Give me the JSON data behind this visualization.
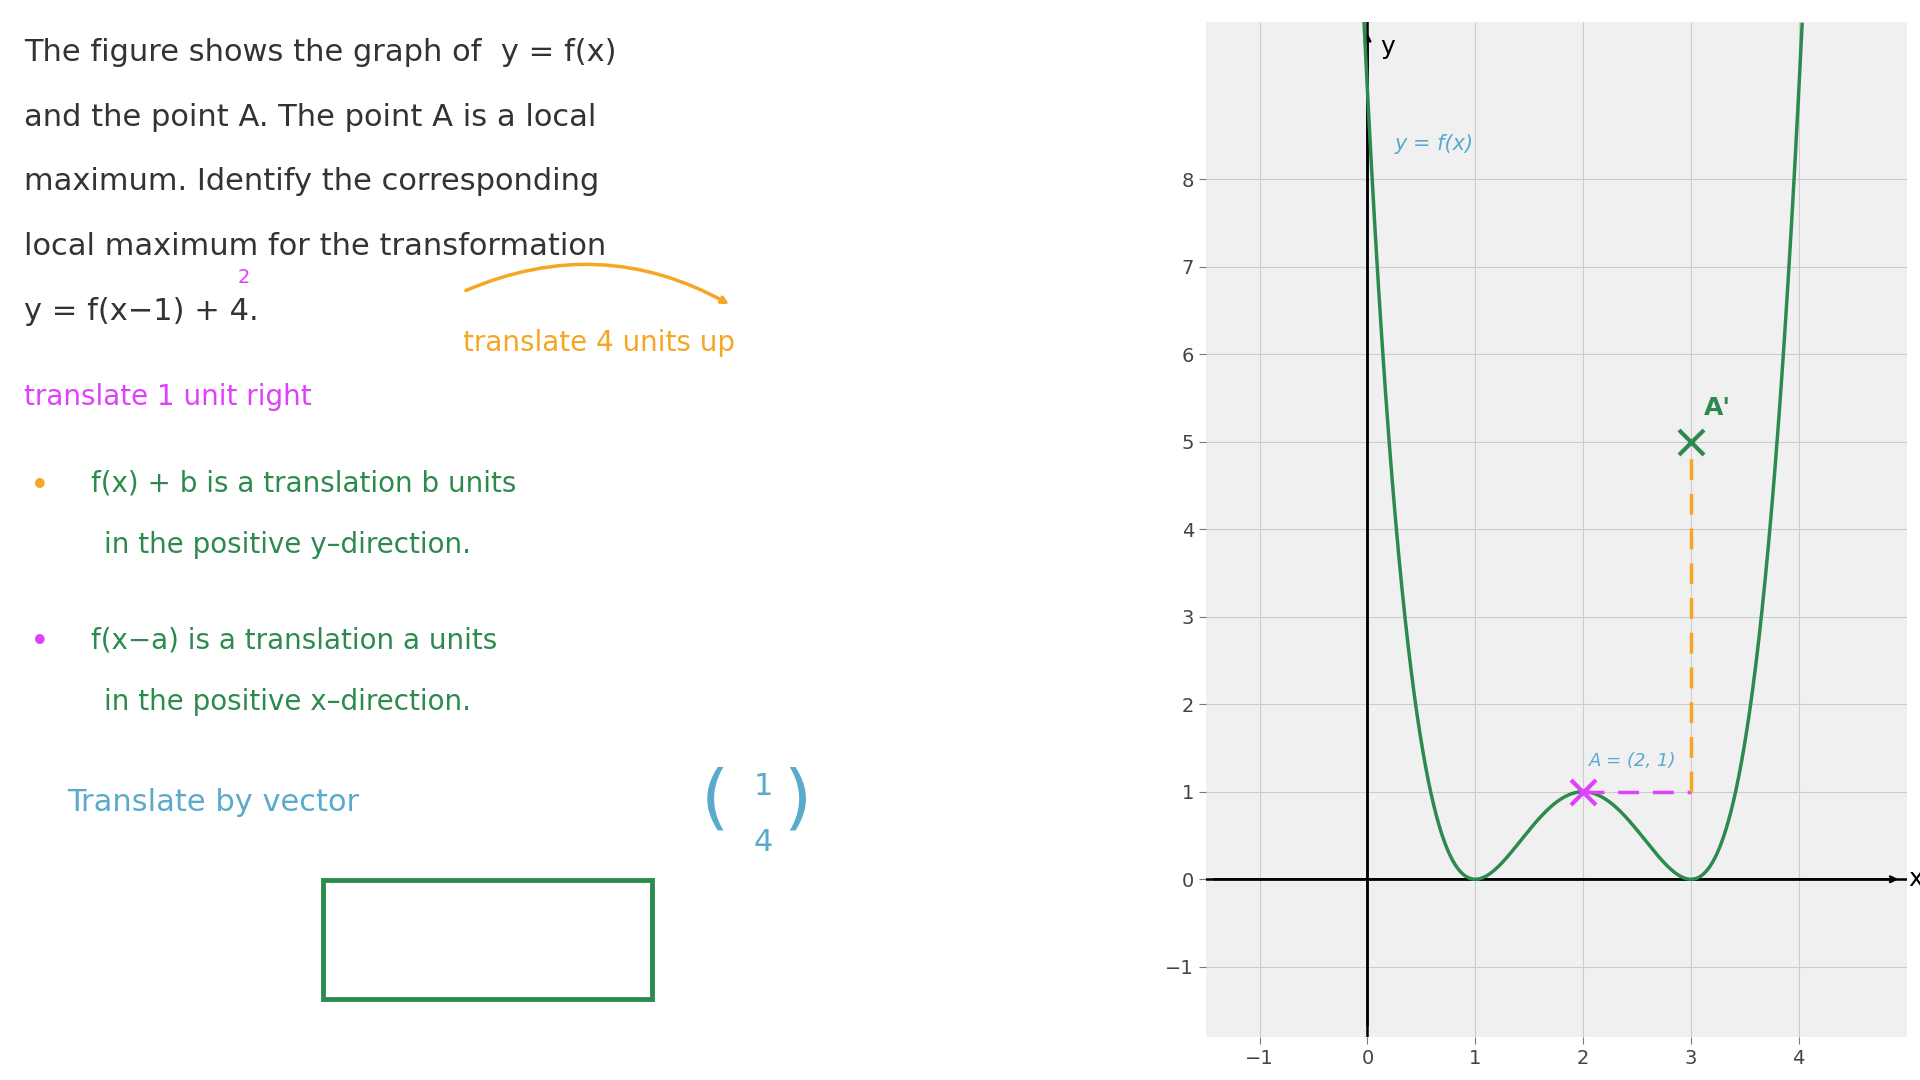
{
  "bg_color": "#ffffff",
  "graph_bg": "#f0f0f0",
  "curve_color": "#2d8a4e",
  "label_color": "#5aabcb",
  "point_A_color": "#e040fb",
  "point_Aprime_color": "#2d8a4e",
  "dashed_line_color": "#f5a623",
  "answer_box_color": "#2d8a4e",
  "vector_color": "#5aabcb",
  "orange_color": "#f5a623",
  "magenta_color": "#e040fb",
  "dark_text": "#333333",
  "green_text": "#2d8a4e",
  "xlim": [
    -1.5,
    5.0
  ],
  "ylim": [
    -1.8,
    9.8
  ],
  "xticks": [
    -1,
    0,
    1,
    2,
    3,
    4
  ],
  "yticks": [
    -1,
    0,
    1,
    2,
    3,
    4,
    5,
    6,
    7,
    8
  ],
  "point_A": [
    2,
    1
  ],
  "point_Aprime": [
    3,
    5
  ]
}
